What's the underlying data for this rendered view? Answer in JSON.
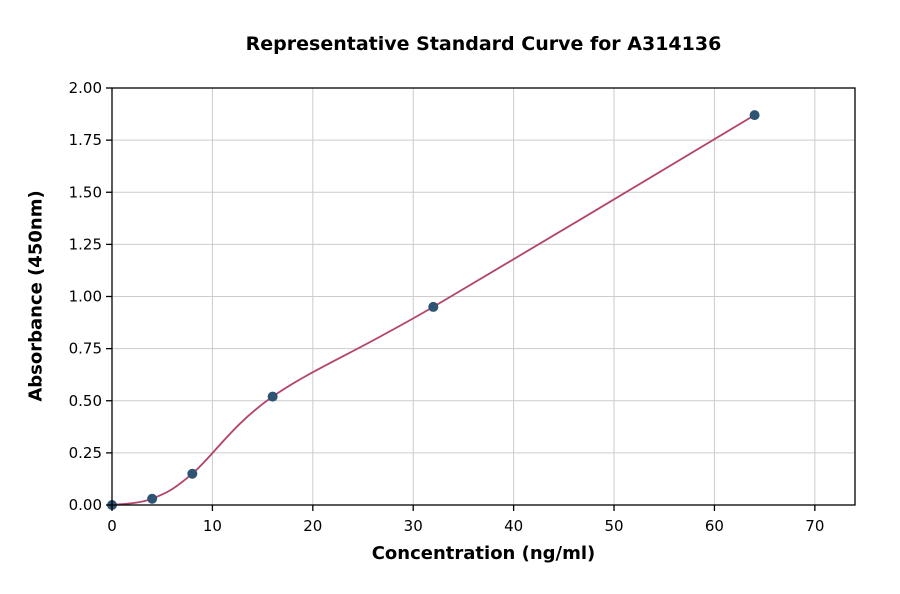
{
  "chart_data": {
    "type": "scatter",
    "title": "Representative Standard Curve for A314136",
    "xlabel": "Concentration (ng/ml)",
    "ylabel": "Absorbance (450nm)",
    "series": [
      {
        "name": "standard-curve",
        "points": [
          {
            "x": 0,
            "y": 0.0
          },
          {
            "x": 4,
            "y": 0.03
          },
          {
            "x": 8,
            "y": 0.15
          },
          {
            "x": 16,
            "y": 0.52
          },
          {
            "x": 32,
            "y": 0.95
          },
          {
            "x": 64,
            "y": 1.87
          }
        ]
      }
    ],
    "xlim": [
      0,
      74
    ],
    "ylim": [
      0,
      2.0
    ],
    "x_ticks": [
      0,
      10,
      20,
      30,
      40,
      50,
      60,
      70
    ],
    "y_ticks": [
      0.0,
      0.25,
      0.5,
      0.75,
      1.0,
      1.25,
      1.5,
      1.75,
      2.0
    ],
    "grid": true,
    "legend": "none",
    "line_color": "#b3446c",
    "marker_color": "#2f5373",
    "grid_color": "#cccccc",
    "axis_color": "#000000"
  }
}
